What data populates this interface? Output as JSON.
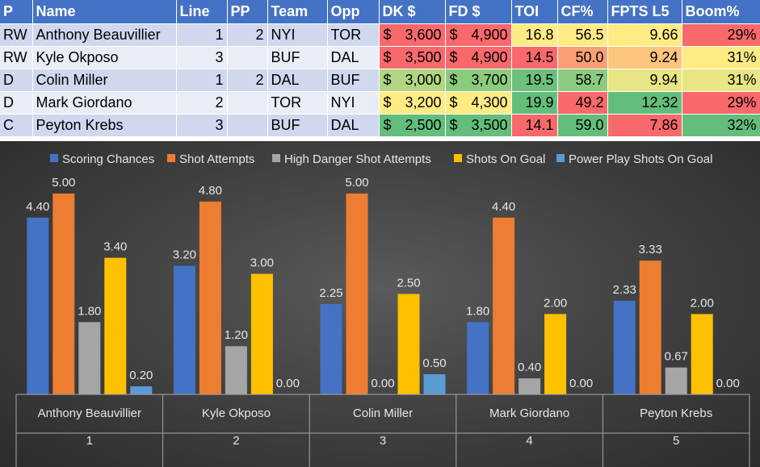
{
  "table": {
    "headers": [
      "P",
      "Name",
      "Line",
      "PP",
      "Team",
      "Opp",
      "DK $",
      "FD $",
      "TOI",
      "CF%",
      "FPTS L5",
      "Boom%"
    ],
    "rows": [
      {
        "pos": "RW",
        "name": "Anthony Beauvillier",
        "line": "1",
        "pp": "2",
        "team": "NYI",
        "opp": "TOR",
        "dk": "3,600",
        "fd": "4,900",
        "toi": "16.8",
        "cf": "56.5",
        "fpts": "9.66",
        "boom": "29%",
        "colors": {
          "dk": "#f8696b",
          "fd": "#f8696b",
          "toi": "#ffeb84",
          "cf": "#ffeb84",
          "fpts": "#ffeb84",
          "boom": "#f8696b"
        }
      },
      {
        "pos": "RW",
        "name": "Kyle Okposo",
        "line": "3",
        "pp": "",
        "team": "BUF",
        "opp": "DAL",
        "dk": "3,500",
        "fd": "4,900",
        "toi": "14.5",
        "cf": "50.0",
        "fpts": "9.24",
        "boom": "31%",
        "colors": {
          "dk": "#f8696b",
          "fd": "#f8696b",
          "toi": "#f8696b",
          "cf": "#fba075",
          "fpts": "#fdc47d",
          "boom": "#ffeb84"
        }
      },
      {
        "pos": "D",
        "name": "Colin Miller",
        "line": "1",
        "pp": "2",
        "team": "DAL",
        "opp": "BUF",
        "dk": "3,000",
        "fd": "3,700",
        "toi": "19.5",
        "cf": "58.7",
        "fpts": "9.94",
        "boom": "31%",
        "colors": {
          "dk": "#b1d580",
          "fd": "#8ccb7e",
          "toi": "#6bc17c",
          "cf": "#8ccb7e",
          "fpts": "#e8e583",
          "boom": "#e8e583"
        }
      },
      {
        "pos": "D",
        "name": "Mark Giordano",
        "line": "2",
        "pp": "",
        "team": "TOR",
        "opp": "NYI",
        "dk": "3,200",
        "fd": "4,300",
        "toi": "19.9",
        "cf": "49.2",
        "fpts": "12.32",
        "boom": "29%",
        "colors": {
          "dk": "#ffeb84",
          "fd": "#ffeb84",
          "toi": "#63be7b",
          "cf": "#f8696b",
          "fpts": "#63be7b",
          "boom": "#f8696b"
        }
      },
      {
        "pos": "C",
        "name": "Peyton Krebs",
        "line": "3",
        "pp": "",
        "team": "BUF",
        "opp": "DAL",
        "dk": "2,500",
        "fd": "3,500",
        "toi": "14.1",
        "cf": "59.0",
        "fpts": "7.86",
        "boom": "32%",
        "colors": {
          "dk": "#63be7b",
          "fd": "#63be7b",
          "toi": "#f8696b",
          "cf": "#63be7b",
          "fpts": "#f8696b",
          "boom": "#63be7b"
        }
      }
    ],
    "currency_symbol": "$"
  },
  "chart_data": {
    "type": "bar",
    "title": "",
    "xlabel": "",
    "ylabel": "",
    "ylim": [
      0,
      5.5
    ],
    "grid": false,
    "legend_position": "top",
    "categories": [
      "Anthony Beauvillier",
      "Kyle Okposo",
      "Colin Miller",
      "Mark Giordano",
      "Peyton Krebs"
    ],
    "category_numbers": [
      "1",
      "2",
      "3",
      "4",
      "5"
    ],
    "value_labels": [
      [
        "4.40",
        "3.20",
        "2.25",
        "1.80",
        "2.33"
      ],
      [
        "5.00",
        "4.80",
        "5.00",
        "4.40",
        "3.33"
      ],
      [
        "1.80",
        "1.20",
        "0.00",
        "0.40",
        "0.67"
      ],
      [
        "3.40",
        "3.00",
        "2.50",
        "2.00",
        "2.00"
      ],
      [
        "0.20",
        "0.00",
        "0.50",
        "0.00",
        "0.00"
      ]
    ],
    "series": [
      {
        "name": "Scoring Chances",
        "values": [
          4.4,
          3.2,
          2.25,
          1.8,
          2.33
        ],
        "color": "#4472c4"
      },
      {
        "name": "Shot Attempts",
        "values": [
          5.0,
          4.8,
          5.0,
          4.4,
          3.33
        ],
        "color": "#ed7d31"
      },
      {
        "name": "High Danger Shot Attempts",
        "values": [
          1.8,
          1.2,
          0.0,
          0.4,
          0.67
        ],
        "color": "#a5a5a5"
      },
      {
        "name": "Shots On Goal",
        "values": [
          3.4,
          3.0,
          2.5,
          2.0,
          2.0
        ],
        "color": "#ffc000"
      },
      {
        "name": "Power Play Shots On Goal",
        "values": [
          0.2,
          0.0,
          0.5,
          0.0,
          0.0
        ],
        "color": "#5b9bd5"
      }
    ]
  }
}
